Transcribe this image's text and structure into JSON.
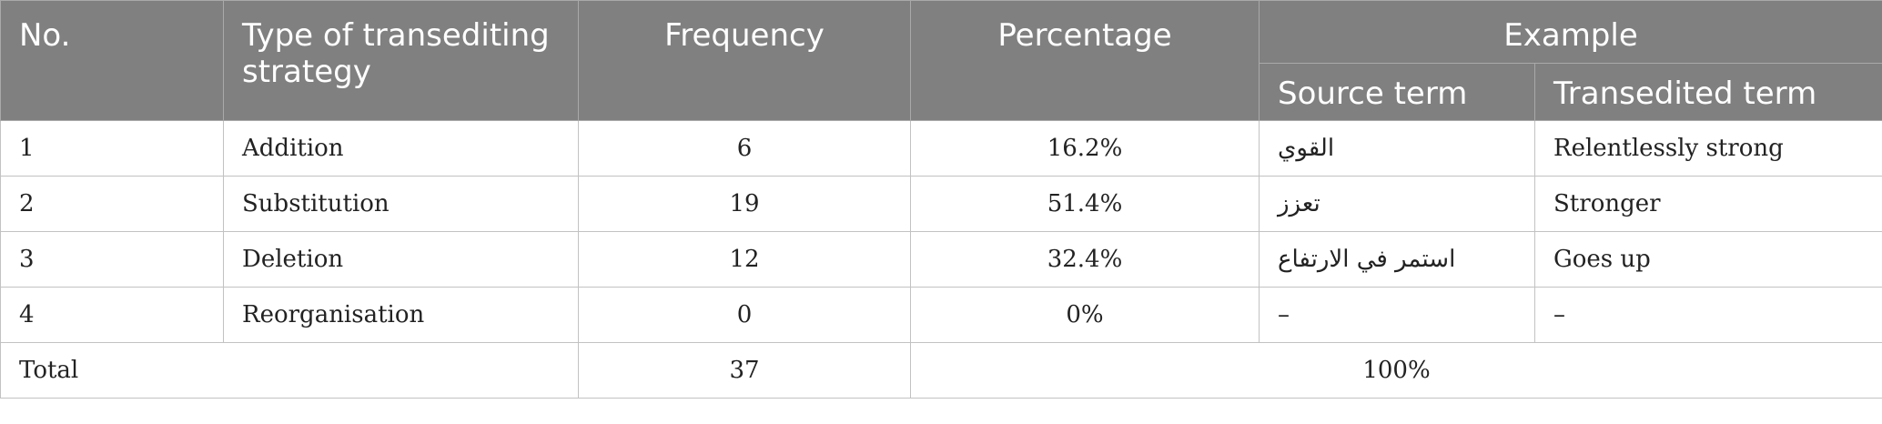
{
  "table": {
    "headers": {
      "no": "No.",
      "type": "Type of transediting strategy",
      "frequency": "Frequency",
      "percentage": "Percentage",
      "example": "Example",
      "source_term": "Source term",
      "transedited_term": "Transedited term"
    },
    "rows": [
      {
        "no": "1",
        "type": "Addition",
        "frequency": "6",
        "percentage": "16.2%",
        "source": "القوي",
        "transedited": "Relentlessly strong"
      },
      {
        "no": "2",
        "type": "Substitution",
        "frequency": "19",
        "percentage": "51.4%",
        "source": "تعزز",
        "transedited": "Stronger"
      },
      {
        "no": "3",
        "type": "Deletion",
        "frequency": "12",
        "percentage": "32.4%",
        "source": "استمر في الارتفاع",
        "transedited": "Goes up"
      },
      {
        "no": "4",
        "type": "Reorganisation",
        "frequency": "0",
        "percentage": "0%",
        "source": "–",
        "transedited": "–"
      }
    ],
    "total": {
      "label": "Total",
      "frequency": "37",
      "percentage": "100%"
    }
  }
}
